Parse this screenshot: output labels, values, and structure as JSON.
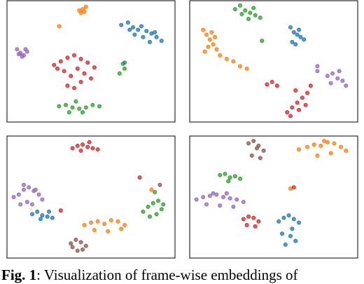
{
  "chart_data": [
    {
      "type": "scatter",
      "xlim": [
        0,
        100
      ],
      "ylim": [
        0,
        100
      ],
      "series": [
        {
          "color": "#1f77b4",
          "x": [
            68,
            72,
            75,
            78,
            80,
            83,
            86,
            89,
            92,
            76,
            81,
            85,
            73,
            88,
            70
          ],
          "values": [
            80,
            82,
            78,
            76,
            79,
            75,
            73,
            70,
            67,
            72,
            70,
            66,
            76,
            74,
            49
          ]
        },
        {
          "color": "#ff7f0e",
          "x": [
            43,
            45,
            47,
            46,
            44,
            31
          ],
          "values": [
            92,
            93,
            95,
            91,
            90,
            79
          ]
        },
        {
          "color": "#9467bd",
          "x": [
            6,
            8,
            10,
            12,
            9,
            11,
            7
          ],
          "values": [
            60,
            57,
            55,
            58,
            54,
            60,
            56
          ]
        },
        {
          "color": "#d62728",
          "x": [
            28,
            32,
            36,
            40,
            44,
            48,
            52,
            34,
            38,
            42,
            46,
            50,
            36,
            40,
            44,
            30
          ],
          "values": [
            47,
            50,
            53,
            55,
            52,
            49,
            45,
            42,
            38,
            44,
            40,
            36,
            30,
            28,
            33,
            44
          ]
        },
        {
          "color": "#2ca02c",
          "x": [
            31,
            35,
            39,
            43,
            47,
            51,
            55,
            37,
            45,
            41,
            69,
            70,
            67
          ],
          "values": [
            13,
            14,
            12,
            11,
            12,
            14,
            13,
            8,
            8,
            17,
            48,
            44,
            40
          ]
        }
      ]
    },
    {
      "type": "scatter",
      "xlim": [
        0,
        100
      ],
      "ylim": [
        0,
        100
      ],
      "series": [
        {
          "color": "#2ca02c",
          "x": [
            27,
            30,
            33,
            36,
            39,
            42,
            31,
            35,
            38,
            43
          ],
          "values": [
            93,
            96,
            92,
            90,
            88,
            86,
            89,
            85,
            94,
            67
          ]
        },
        {
          "color": "#1f77b4",
          "x": [
            60,
            62,
            64,
            66,
            68,
            63,
            65,
            61
          ],
          "values": [
            78,
            74,
            72,
            70,
            68,
            64,
            76,
            66
          ]
        },
        {
          "color": "#ff7f0e",
          "x": [
            8,
            10,
            12,
            14,
            16,
            9,
            11,
            13,
            15,
            18,
            22,
            26,
            30,
            34
          ],
          "values": [
            76,
            72,
            68,
            64,
            60,
            58,
            62,
            74,
            70,
            55,
            52,
            50,
            46,
            44
          ]
        },
        {
          "color": "#9467bd",
          "x": [
            82,
            85,
            88,
            91,
            93,
            84,
            89,
            76,
            76
          ],
          "values": [
            38,
            40,
            36,
            34,
            30,
            32,
            42,
            46,
            42
          ]
        },
        {
          "color": "#d62728",
          "x": [
            58,
            61,
            64,
            67,
            70,
            72,
            60,
            65,
            69,
            63,
            46,
            49,
            52
          ],
          "values": [
            8,
            12,
            16,
            20,
            24,
            30,
            5,
            10,
            14,
            26,
            31,
            33,
            30
          ]
        }
      ]
    },
    {
      "type": "scatter",
      "xlim": [
        0,
        100
      ],
      "ylim": [
        0,
        100
      ],
      "series": [
        {
          "color": "#d62728",
          "x": [
            39,
            42,
            45,
            48,
            51,
            54,
            44,
            49,
            32,
            79
          ],
          "values": [
            90,
            92,
            93,
            91,
            90,
            89,
            88,
            95,
            39,
            66
          ]
        },
        {
          "color": "#9467bd",
          "x": [
            4,
            7,
            10,
            13,
            16,
            19,
            21,
            8,
            12,
            15,
            17,
            10
          ],
          "values": [
            50,
            52,
            56,
            58,
            55,
            52,
            48,
            44,
            46,
            44,
            56,
            60
          ]
        },
        {
          "color": "#1f77b4",
          "x": [
            15,
            18,
            21,
            24,
            27,
            20,
            25
          ],
          "values": [
            36,
            38,
            35,
            34,
            33,
            32,
            38
          ]
        },
        {
          "color": "#ff7f0e",
          "x": [
            46,
            50,
            54,
            58,
            62,
            66,
            70,
            52,
            60,
            68,
            86
          ],
          "values": [
            27,
            29,
            30,
            28,
            31,
            30,
            27,
            23,
            22,
            24,
            56
          ]
        },
        {
          "color": "#8c564b",
          "x": [
            38,
            41,
            44,
            47,
            42,
            45,
            39,
            91
          ],
          "values": [
            12,
            15,
            13,
            10,
            6,
            7,
            9,
            60
          ]
        },
        {
          "color": "#2ca02c",
          "x": [
            81,
            84,
            87,
            90,
            93,
            85,
            89,
            92,
            88
          ],
          "values": [
            38,
            42,
            45,
            47,
            44,
            34,
            36,
            40,
            54
          ]
        }
      ]
    },
    {
      "type": "scatter",
      "xlim": [
        0,
        100
      ],
      "ylim": [
        0,
        100
      ],
      "series": [
        {
          "color": "#8c564b",
          "x": [
            35,
            38,
            41,
            44,
            37,
            42,
            40
          ],
          "values": [
            94,
            96,
            92,
            88,
            84,
            82,
            90
          ]
        },
        {
          "color": "#ff7f0e",
          "x": [
            65,
            70,
            74,
            78,
            82,
            86,
            90,
            93,
            76,
            84,
            80,
            60
          ],
          "values": [
            89,
            91,
            93,
            92,
            95,
            94,
            91,
            88,
            84,
            86,
            96,
            57
          ]
        },
        {
          "color": "#2ca02c",
          "x": [
            18,
            21,
            24,
            27,
            30,
            23
          ],
          "values": [
            68,
            69,
            66,
            67,
            65,
            63
          ]
        },
        {
          "color": "#9467bd",
          "x": [
            4,
            8,
            12,
            16,
            20,
            24,
            28,
            32,
            10,
            18,
            26,
            14,
            22
          ],
          "values": [
            48,
            50,
            51,
            52,
            50,
            49,
            48,
            46,
            44,
            43,
            42,
            53,
            53
          ]
        },
        {
          "color": "#d62728",
          "x": [
            32,
            35,
            38,
            41,
            34,
            39,
            62
          ],
          "values": [
            32,
            34,
            33,
            30,
            27,
            26,
            58
          ]
        },
        {
          "color": "#1f77b4",
          "x": [
            53,
            56,
            59,
            62,
            65,
            55,
            60,
            63,
            57,
            61
          ],
          "values": [
            30,
            33,
            35,
            32,
            29,
            20,
            18,
            14,
            11,
            24
          ]
        }
      ]
    }
  ],
  "caption": {
    "label": "Fig. 1",
    "text": ": Visualization of frame-wise embeddings of"
  }
}
